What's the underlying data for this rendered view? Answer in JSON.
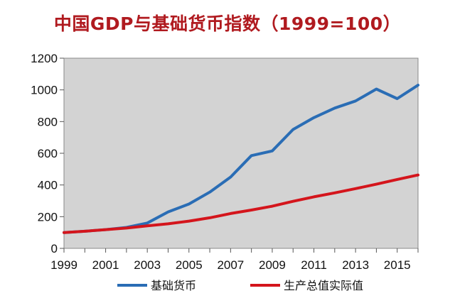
{
  "chart_data": {
    "type": "line",
    "title": "中国GDP与基础货币指数（1999=100）",
    "xlabel": "",
    "ylabel": "",
    "xlim": [
      1999,
      2016
    ],
    "ylim": [
      0,
      1200
    ],
    "xticks": [
      1999,
      2001,
      2003,
      2005,
      2007,
      2009,
      2011,
      2013,
      2015
    ],
    "yticks": [
      0,
      200,
      400,
      600,
      800,
      1000,
      1200
    ],
    "grid": false,
    "legend_position": "bottom",
    "series": [
      {
        "name": "基础货币",
        "color": "#2a6db5",
        "x": [
          1999,
          2000,
          2001,
          2002,
          2003,
          2004,
          2005,
          2006,
          2007,
          2008,
          2009,
          2010,
          2011,
          2012,
          2013,
          2014,
          2015,
          2016
        ],
        "y": [
          100,
          108,
          118,
          132,
          160,
          230,
          280,
          355,
          450,
          585,
          615,
          750,
          825,
          885,
          930,
          1005,
          945,
          1030
        ]
      },
      {
        "name": "生产总值实际值",
        "color": "#d4151c",
        "x": [
          1999,
          2000,
          2001,
          2002,
          2003,
          2004,
          2005,
          2006,
          2007,
          2008,
          2009,
          2010,
          2011,
          2012,
          2013,
          2014,
          2015,
          2016
        ],
        "y": [
          100,
          108,
          118,
          128,
          142,
          155,
          172,
          193,
          220,
          242,
          266,
          297,
          325,
          350,
          377,
          405,
          435,
          463
        ]
      }
    ]
  }
}
